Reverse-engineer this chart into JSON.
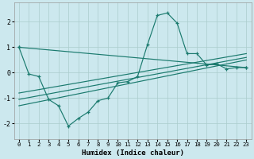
{
  "xlabel": "Humidex (Indice chaleur)",
  "background_color": "#cce8ee",
  "grid_color": "#aacccc",
  "line_color": "#1a7a6e",
  "xlim": [
    -0.5,
    23.5
  ],
  "ylim": [
    -2.6,
    2.75
  ],
  "yticks": [
    -2,
    -1,
    0,
    1,
    2
  ],
  "xticks": [
    0,
    1,
    2,
    3,
    4,
    5,
    6,
    7,
    8,
    9,
    10,
    11,
    12,
    13,
    14,
    15,
    16,
    17,
    18,
    19,
    20,
    21,
    22,
    23
  ],
  "main_x": [
    0,
    1,
    2,
    3,
    4,
    5,
    6,
    7,
    8,
    9,
    10,
    11,
    12,
    13,
    14,
    15,
    16,
    17,
    18,
    19,
    20,
    21,
    22,
    23
  ],
  "main_y": [
    1.0,
    -0.05,
    -0.15,
    -1.05,
    -1.3,
    -2.1,
    -1.8,
    -1.55,
    -1.1,
    -1.0,
    -0.4,
    -0.35,
    -0.15,
    1.1,
    2.25,
    2.35,
    1.95,
    0.75,
    0.75,
    0.3,
    0.35,
    0.15,
    0.2,
    0.2
  ],
  "line2_x": [
    0,
    23
  ],
  "line2_y": [
    -1.3,
    0.5
  ],
  "line3_x": [
    0,
    23
  ],
  "line3_y": [
    -1.05,
    0.6
  ],
  "line4_x": [
    0,
    23
  ],
  "line4_y": [
    -0.8,
    0.75
  ],
  "line5_x": [
    0,
    23
  ],
  "line5_y": [
    1.0,
    0.2
  ]
}
